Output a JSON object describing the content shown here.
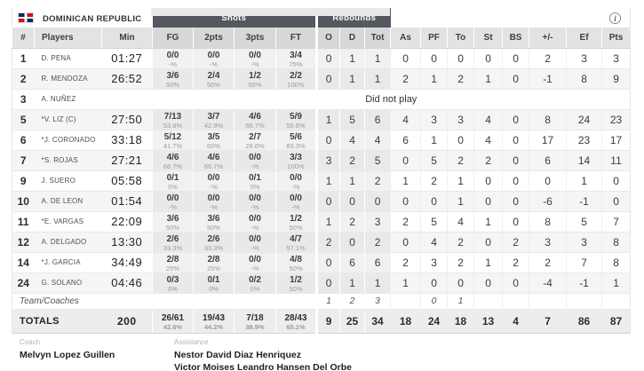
{
  "team": {
    "name": "DOMINICAN REPUBLIC"
  },
  "groups": {
    "shots": "Shots",
    "rebounds": "Rebounds"
  },
  "info_icon": "i",
  "columns": [
    "#",
    "Players",
    "Min",
    "FG",
    "2pts",
    "3pts",
    "FT",
    "O",
    "D",
    "Tot",
    "As",
    "PF",
    "To",
    "St",
    "BS",
    "+/-",
    "Ef",
    "Pts"
  ],
  "dnp_text": "Did not play",
  "players": [
    {
      "num": "1",
      "name": "D. PENA",
      "min": "01:27",
      "shots": [
        [
          "0/0",
          "-%"
        ],
        [
          "0/0",
          "-%"
        ],
        [
          "0/0",
          "-%"
        ],
        [
          "3/4",
          "75%"
        ]
      ],
      "stats": [
        "0",
        "1",
        "1",
        "0",
        "0",
        "0",
        "0",
        "0",
        "2",
        "3",
        "3"
      ]
    },
    {
      "num": "2",
      "name": "R. MENDOZA",
      "min": "26:52",
      "shots": [
        [
          "3/6",
          "50%"
        ],
        [
          "2/4",
          "50%"
        ],
        [
          "1/2",
          "50%"
        ],
        [
          "2/2",
          "100%"
        ]
      ],
      "stats": [
        "0",
        "1",
        "1",
        "2",
        "1",
        "2",
        "1",
        "0",
        "-1",
        "8",
        "9"
      ]
    },
    {
      "num": "3",
      "name": "A. NUÑEZ",
      "min": "",
      "dnp": true
    },
    {
      "num": "5",
      "name": "*V. LIZ (C)",
      "min": "27:50",
      "shots": [
        [
          "7/13",
          "53.8%"
        ],
        [
          "3/7",
          "42.9%"
        ],
        [
          "4/6",
          "66.7%"
        ],
        [
          "5/9",
          "55.6%"
        ]
      ],
      "stats": [
        "1",
        "5",
        "6",
        "4",
        "3",
        "3",
        "4",
        "0",
        "8",
        "24",
        "23"
      ]
    },
    {
      "num": "6",
      "name": "*J. CORONADO",
      "min": "33:18",
      "shots": [
        [
          "5/12",
          "41.7%"
        ],
        [
          "3/5",
          "60%"
        ],
        [
          "2/7",
          "28.6%"
        ],
        [
          "5/6",
          "83.3%"
        ]
      ],
      "stats": [
        "0",
        "4",
        "4",
        "6",
        "1",
        "0",
        "4",
        "0",
        "17",
        "23",
        "17"
      ]
    },
    {
      "num": "7",
      "name": "*S. ROJAS",
      "min": "27:21",
      "shots": [
        [
          "4/6",
          "66.7%"
        ],
        [
          "4/6",
          "66.7%"
        ],
        [
          "0/0",
          "-%"
        ],
        [
          "3/3",
          "100%"
        ]
      ],
      "stats": [
        "3",
        "2",
        "5",
        "0",
        "5",
        "2",
        "2",
        "0",
        "6",
        "14",
        "11"
      ]
    },
    {
      "num": "9",
      "name": "J. SUERO",
      "min": "05:58",
      "shots": [
        [
          "0/1",
          "0%"
        ],
        [
          "0/0",
          "-%"
        ],
        [
          "0/1",
          "0%"
        ],
        [
          "0/0",
          "-%"
        ]
      ],
      "stats": [
        "1",
        "1",
        "2",
        "1",
        "2",
        "1",
        "0",
        "0",
        "0",
        "1",
        "0"
      ]
    },
    {
      "num": "10",
      "name": "A. DE LEON",
      "min": "01:54",
      "shots": [
        [
          "0/0",
          "-%"
        ],
        [
          "0/0",
          "-%"
        ],
        [
          "0/0",
          "-%"
        ],
        [
          "0/0",
          "-%"
        ]
      ],
      "stats": [
        "0",
        "0",
        "0",
        "0",
        "0",
        "1",
        "0",
        "0",
        "-6",
        "-1",
        "0"
      ]
    },
    {
      "num": "11",
      "name": "*E. VARGAS",
      "min": "22:09",
      "shots": [
        [
          "3/6",
          "50%"
        ],
        [
          "3/6",
          "50%"
        ],
        [
          "0/0",
          "-%"
        ],
        [
          "1/2",
          "50%"
        ]
      ],
      "stats": [
        "1",
        "2",
        "3",
        "2",
        "5",
        "4",
        "1",
        "0",
        "8",
        "5",
        "7"
      ]
    },
    {
      "num": "12",
      "name": "A. DELGADO",
      "min": "13:30",
      "shots": [
        [
          "2/6",
          "33.3%"
        ],
        [
          "2/6",
          "33.3%"
        ],
        [
          "0/0",
          "-%"
        ],
        [
          "4/7",
          "57.1%"
        ]
      ],
      "stats": [
        "2",
        "0",
        "2",
        "0",
        "4",
        "2",
        "0",
        "2",
        "3",
        "3",
        "8"
      ]
    },
    {
      "num": "14",
      "name": "*J. GARCIA",
      "min": "34:49",
      "shots": [
        [
          "2/8",
          "25%"
        ],
        [
          "2/8",
          "25%"
        ],
        [
          "0/0",
          "-%"
        ],
        [
          "4/8",
          "50%"
        ]
      ],
      "stats": [
        "0",
        "6",
        "6",
        "2",
        "3",
        "2",
        "1",
        "2",
        "2",
        "7",
        "8"
      ]
    },
    {
      "num": "24",
      "name": "G. SOLANO",
      "min": "04:46",
      "shots": [
        [
          "0/3",
          "0%"
        ],
        [
          "0/1",
          "0%"
        ],
        [
          "0/2",
          "0%"
        ],
        [
          "1/2",
          "50%"
        ]
      ],
      "stats": [
        "0",
        "1",
        "1",
        "1",
        "0",
        "0",
        "0",
        "0",
        "-4",
        "-1",
        "1"
      ]
    }
  ],
  "team_row": {
    "label": "Team/Coaches",
    "stats": [
      "1",
      "2",
      "3",
      "",
      "0",
      "1",
      "",
      "",
      "",
      "",
      ""
    ]
  },
  "totals": {
    "label": "TOTALS",
    "min": "200",
    "shots": [
      [
        "26/61",
        "42.6%"
      ],
      [
        "19/43",
        "44.2%"
      ],
      [
        "7/18",
        "38.9%"
      ],
      [
        "28/43",
        "65.1%"
      ]
    ],
    "stats": [
      "9",
      "25",
      "34",
      "18",
      "24",
      "18",
      "13",
      "4",
      "7",
      "86",
      "87"
    ]
  },
  "footer": {
    "coach_label": "Coach",
    "coach_name": "Melvyn Lopez Guillen",
    "assistance_label": "Assistance",
    "assistants": [
      "Nestor David Diaz Henriquez",
      "Victor Moises Leandro Hansen Del Orbe"
    ]
  },
  "colors": {
    "group_header_bg": "#54595f",
    "flag_blue": "#002d62",
    "flag_red": "#ce1126"
  }
}
